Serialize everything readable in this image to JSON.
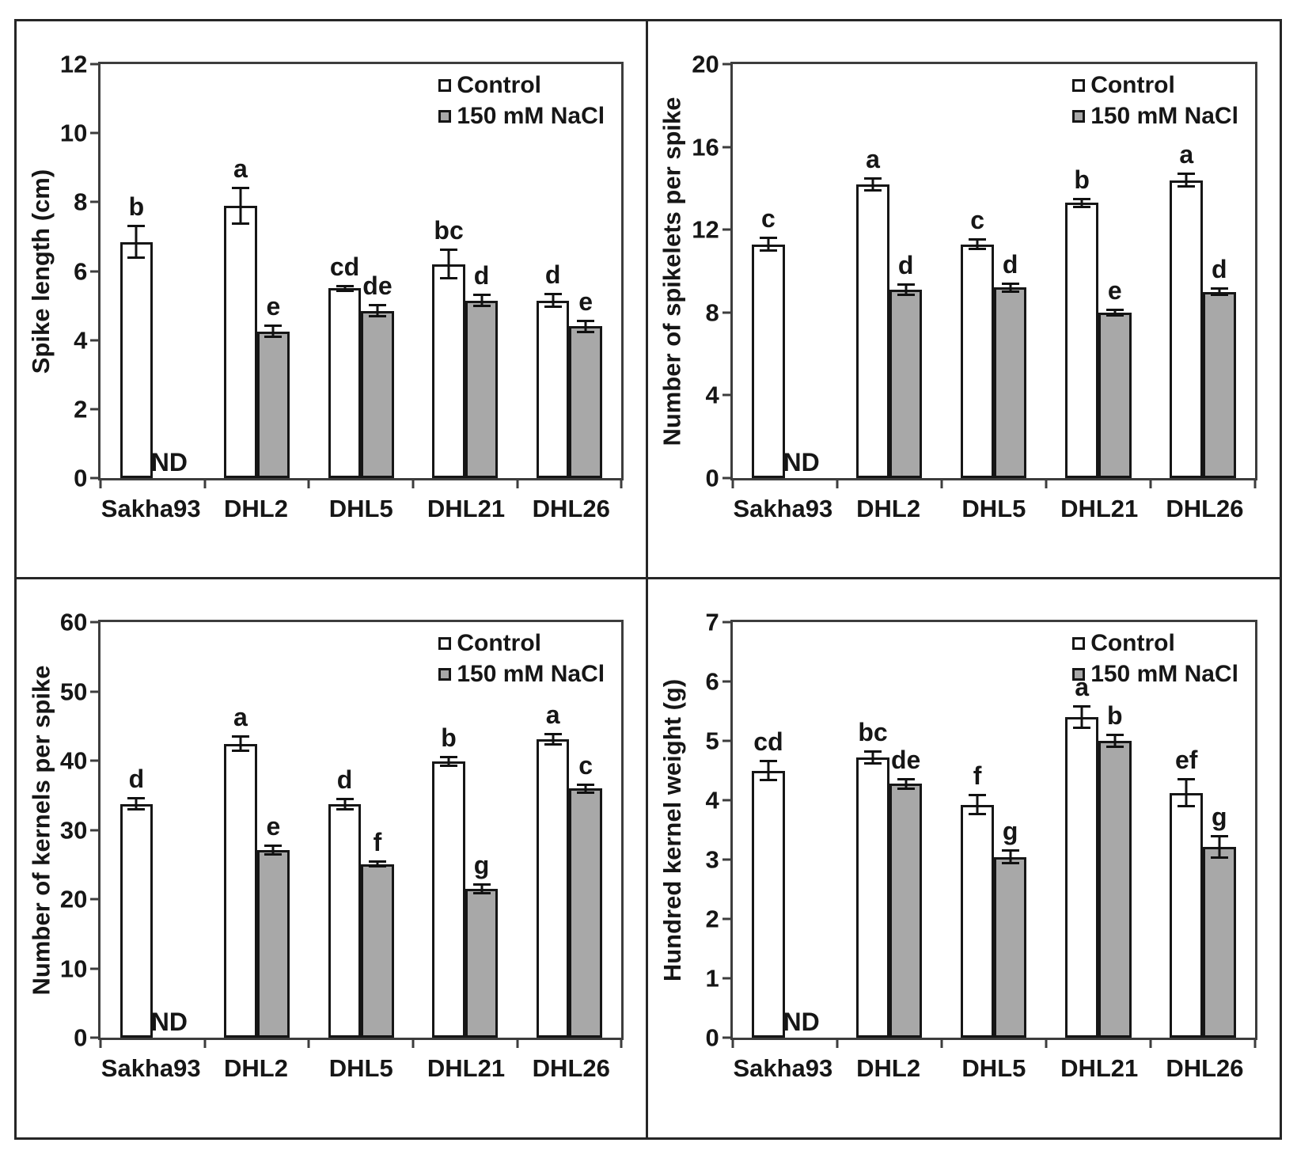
{
  "figure": {
    "nd_label": "ND",
    "categories": [
      "Sakha93",
      "DHL2",
      "DHL5",
      "DHL21",
      "DHL26"
    ],
    "legend": {
      "control_label": "Control",
      "nacl_label": "150 mM NaCl"
    },
    "colors": {
      "control_fill": "#ffffff",
      "nacl_fill": "#a8a8a8",
      "bar_border": "#161616",
      "text": "#161616"
    }
  },
  "chart_data": [
    {
      "type": "bar",
      "title": "",
      "ylabel": "Spike length (cm)",
      "xlabel": "",
      "ylim": [
        0,
        12
      ],
      "yticks": [
        0,
        2,
        4,
        6,
        8,
        10,
        12
      ],
      "grid": false,
      "legend_position": "top-right",
      "categories": [
        "Sakha93",
        "DHL2",
        "DHL5",
        "DHL21",
        "DHL26"
      ],
      "series": [
        {
          "name": "Control",
          "values": [
            6.85,
            7.9,
            5.5,
            6.2,
            5.15
          ],
          "errors": [
            0.5,
            0.55,
            0.1,
            0.45,
            0.22
          ],
          "letters": [
            "b",
            "a",
            "cd",
            "bc",
            "d"
          ]
        },
        {
          "name": "150 mM NaCl",
          "values": [
            null,
            4.25,
            4.85,
            5.15,
            4.4
          ],
          "errors": [
            null,
            0.2,
            0.2,
            0.2,
            0.2
          ],
          "letters": [
            null,
            "e",
            "de",
            "d",
            "e"
          ]
        }
      ]
    },
    {
      "type": "bar",
      "title": "",
      "ylabel": "Number of spikelets per spike",
      "xlabel": "",
      "ylim": [
        0,
        20
      ],
      "yticks": [
        0,
        4,
        8,
        12,
        16,
        20
      ],
      "grid": false,
      "legend_position": "top-right",
      "categories": [
        "Sakha93",
        "DHL2",
        "DHL5",
        "DHL21",
        "DHL26"
      ],
      "series": [
        {
          "name": "Control",
          "values": [
            11.3,
            14.2,
            11.3,
            13.3,
            14.4
          ],
          "errors": [
            0.35,
            0.35,
            0.3,
            0.25,
            0.35
          ],
          "letters": [
            "c",
            "a",
            "c",
            "b",
            "a"
          ]
        },
        {
          "name": "150 mM NaCl",
          "values": [
            null,
            9.1,
            9.2,
            8.0,
            9.0
          ],
          "errors": [
            null,
            0.3,
            0.25,
            0.2,
            0.2
          ],
          "letters": [
            null,
            "d",
            "d",
            "e",
            "d"
          ]
        }
      ]
    },
    {
      "type": "bar",
      "title": "",
      "ylabel": "Number of kernels per spike",
      "xlabel": "",
      "ylim": [
        0,
        60
      ],
      "yticks": [
        0,
        10,
        20,
        30,
        40,
        50,
        60
      ],
      "grid": false,
      "legend_position": "top-right",
      "categories": [
        "Sakha93",
        "DHL2",
        "DHL5",
        "DHL21",
        "DHL26"
      ],
      "series": [
        {
          "name": "Control",
          "values": [
            33.8,
            42.5,
            33.8,
            39.9,
            43.1
          ],
          "errors": [
            1.0,
            1.2,
            0.9,
            0.8,
            0.9
          ],
          "letters": [
            "d",
            "a",
            "d",
            "b",
            "a"
          ]
        },
        {
          "name": "150 mM NaCl",
          "values": [
            null,
            27.1,
            25.1,
            21.5,
            36.0
          ],
          "errors": [
            null,
            0.8,
            0.5,
            0.8,
            0.7
          ],
          "letters": [
            null,
            "e",
            "f",
            "g",
            "c"
          ]
        }
      ]
    },
    {
      "type": "bar",
      "title": "",
      "ylabel": "Hundred kernel weight (g)",
      "xlabel": "",
      "ylim": [
        0,
        7
      ],
      "yticks": [
        0,
        1,
        2,
        3,
        4,
        5,
        6,
        7
      ],
      "grid": false,
      "legend_position": "top-right",
      "categories": [
        "Sakha93",
        "DHL2",
        "DHL5",
        "DHL21",
        "DHL26"
      ],
      "series": [
        {
          "name": "Control",
          "values": [
            4.5,
            4.72,
            3.93,
            5.4,
            4.13
          ],
          "errors": [
            0.18,
            0.12,
            0.18,
            0.2,
            0.25
          ],
          "letters": [
            "cd",
            "bc",
            "f",
            "a",
            "ef"
          ]
        },
        {
          "name": "150 mM NaCl",
          "values": [
            null,
            4.28,
            3.05,
            5.0,
            3.22
          ],
          "errors": [
            null,
            0.1,
            0.13,
            0.12,
            0.2
          ],
          "letters": [
            null,
            "de",
            "g",
            "b",
            "g"
          ]
        }
      ]
    }
  ]
}
